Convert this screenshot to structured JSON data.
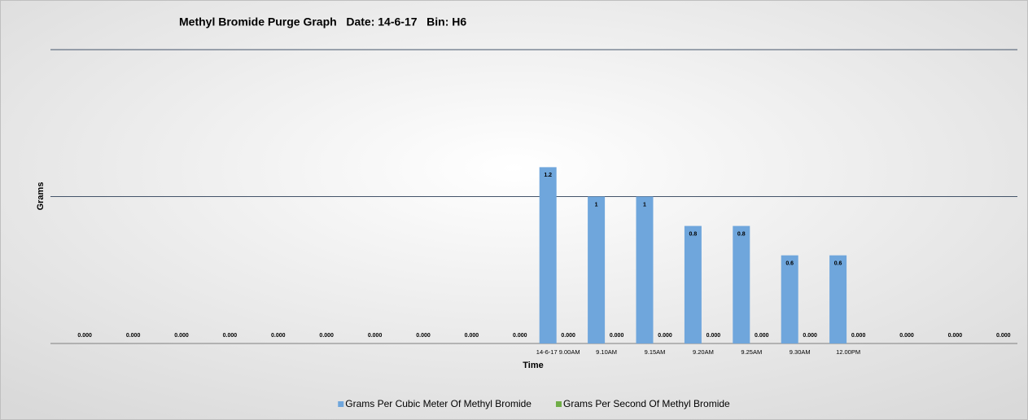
{
  "chart_data": {
    "type": "bar",
    "title": "Methyl Bromide Purge Graph   Date: 14-6-17   Bin: H6",
    "x_label": "Time",
    "y_label": "Grams",
    "categories": [
      null,
      null,
      null,
      null,
      null,
      null,
      null,
      null,
      null,
      null,
      "14-6-17 9.00AM",
      "9.10AM",
      "9.15AM",
      "9.20AM",
      "9.25AM",
      "9.30AM",
      "12.00PM",
      null,
      null,
      null
    ],
    "series": [
      {
        "name": "Grams Per Cubic Meter Of Methyl Bromide",
        "color": "#6fa6dc",
        "values": [
          null,
          null,
          null,
          null,
          null,
          null,
          null,
          null,
          null,
          null,
          1.2,
          1,
          1,
          0.8,
          0.8,
          0.6,
          0.6,
          null,
          null,
          null
        ]
      },
      {
        "name": "Grams Per Second Of Methyl Bromide",
        "color": "#70ad47",
        "values": [
          0,
          0,
          0,
          0,
          0,
          0,
          0,
          0,
          0,
          0,
          0,
          0,
          0,
          0,
          0,
          0,
          0,
          0,
          0,
          0
        ],
        "value_labels": [
          "0.000",
          "0.000",
          "0.000",
          "0.000",
          "0.000",
          "0.000",
          "0.000",
          "0.000",
          "0.000",
          "0.000",
          "0.000",
          "0.000",
          "0.000",
          "0.000",
          "0.000",
          "0.000",
          "0.000",
          "0.000",
          "0.000",
          "0.000"
        ]
      }
    ],
    "ylim": [
      0,
      2
    ],
    "yticks": [
      0,
      1,
      2
    ],
    "tick_labels": false,
    "grid": true,
    "legend": "bottom"
  }
}
